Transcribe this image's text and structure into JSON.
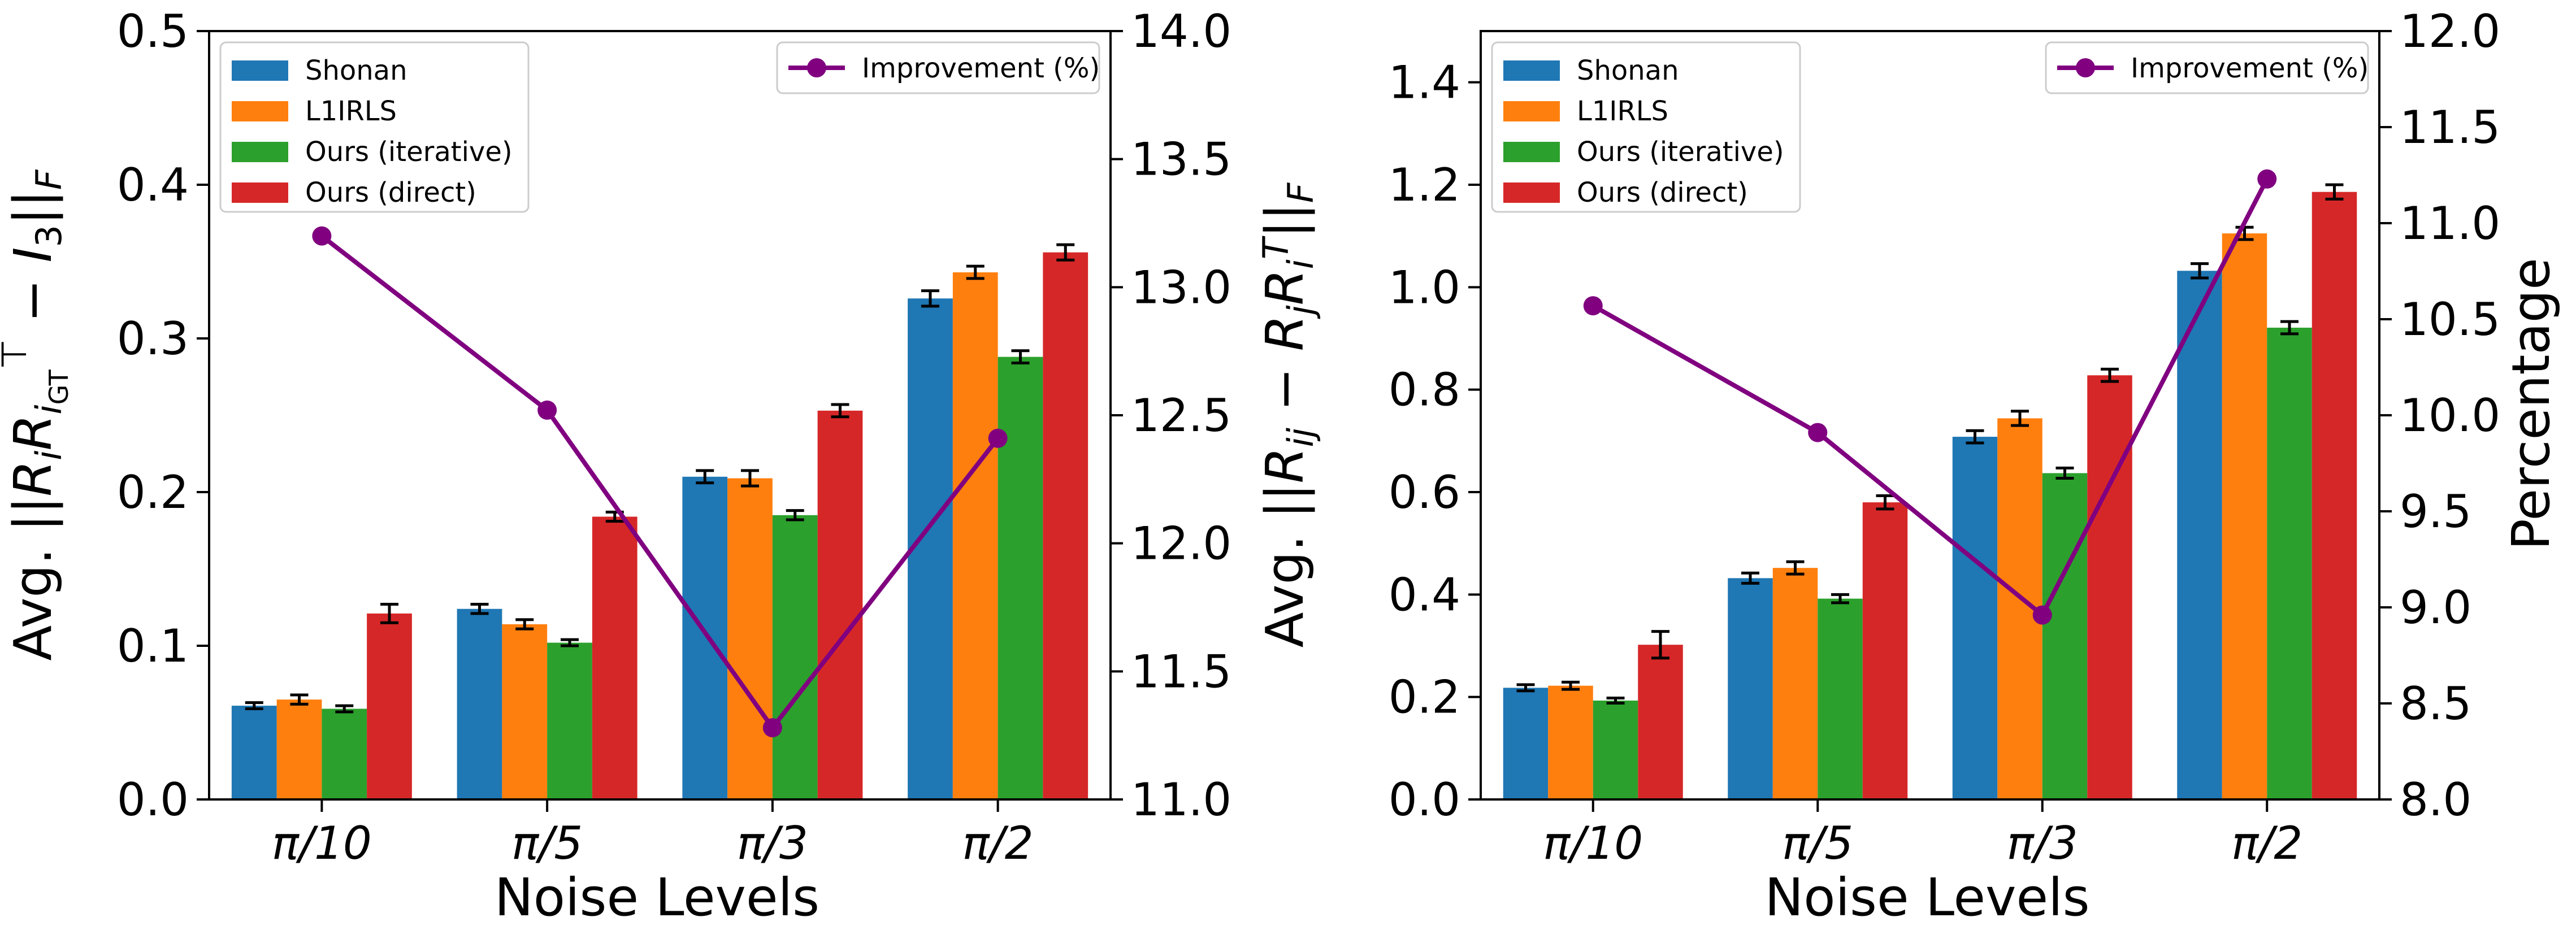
{
  "chart_data": [
    {
      "type": "bar",
      "title": "",
      "xlabel": "Noise Levels",
      "ylabel_prefix": "Avg. ",
      "ylabel_formula": "||R_i R_iGT^T − I_3||_F",
      "y2label": "",
      "categories": [
        "π/10",
        "π/5",
        "π/3",
        "π/2"
      ],
      "ylim": [
        0,
        0.5
      ],
      "yticks": [
        "0.0",
        "0.1",
        "0.2",
        "0.3",
        "0.4",
        "0.5"
      ],
      "y2lim": [
        11.0,
        14.0
      ],
      "y2ticks": [
        "11.0",
        "11.5",
        "12.0",
        "12.5",
        "13.0",
        "13.5",
        "14.0"
      ],
      "series": [
        {
          "name": "Shonan",
          "color": "#1f77b4",
          "values": [
            0.061,
            0.124,
            0.21,
            0.326
          ],
          "errors": [
            0.002,
            0.003,
            0.004,
            0.005
          ]
        },
        {
          "name": "L1IRLS",
          "color": "#ff7f0e",
          "values": [
            0.065,
            0.114,
            0.209,
            0.343
          ],
          "errors": [
            0.003,
            0.003,
            0.005,
            0.004
          ]
        },
        {
          "name": "Ours (iterative)",
          "color": "#2ca02c",
          "values": [
            0.059,
            0.102,
            0.185,
            0.288
          ],
          "errors": [
            0.002,
            0.002,
            0.003,
            0.004
          ]
        },
        {
          "name": "Ours (direct)",
          "color": "#d62728",
          "values": [
            0.121,
            0.184,
            0.253,
            0.356
          ],
          "errors": [
            0.006,
            0.003,
            0.004,
            0.005
          ]
        }
      ],
      "line": {
        "name": "Improvement (%)",
        "color": "#800080",
        "values": [
          13.2,
          12.52,
          11.28,
          12.41
        ]
      },
      "legend_position": "upper-left",
      "line_legend_position": "upper-right"
    },
    {
      "type": "bar",
      "title": "",
      "xlabel": "Noise Levels",
      "ylabel_prefix": "Avg. ",
      "ylabel_formula": "||R_ij − R_j R_i^T||_F",
      "y2label": "Percentage",
      "categories": [
        "π/10",
        "π/5",
        "π/3",
        "π/2"
      ],
      "ylim": [
        0,
        1.5
      ],
      "yticks": [
        "0.0",
        "0.2",
        "0.4",
        "0.6",
        "0.8",
        "1.0",
        "1.2",
        "1.4"
      ],
      "y2lim": [
        8.0,
        12.0
      ],
      "y2ticks": [
        "8.0",
        "8.5",
        "9.0",
        "9.5",
        "10.0",
        "10.5",
        "11.0",
        "11.5",
        "12.0"
      ],
      "series": [
        {
          "name": "Shonan",
          "color": "#1f77b4",
          "values": [
            0.218,
            0.432,
            0.708,
            1.032
          ],
          "errors": [
            0.006,
            0.01,
            0.012,
            0.014
          ]
        },
        {
          "name": "L1IRLS",
          "color": "#ff7f0e",
          "values": [
            0.222,
            0.452,
            0.744,
            1.105
          ],
          "errors": [
            0.007,
            0.012,
            0.014,
            0.012
          ]
        },
        {
          "name": "Ours (iterative)",
          "color": "#2ca02c",
          "values": [
            0.193,
            0.392,
            0.637,
            0.921
          ],
          "errors": [
            0.005,
            0.008,
            0.01,
            0.012
          ]
        },
        {
          "name": "Ours (direct)",
          "color": "#d62728",
          "values": [
            0.302,
            0.58,
            0.828,
            1.186
          ],
          "errors": [
            0.026,
            0.013,
            0.012,
            0.014
          ]
        }
      ],
      "line": {
        "name": "Improvement (%)",
        "color": "#800080",
        "values": [
          10.57,
          9.91,
          8.96,
          11.23
        ]
      },
      "legend_position": "upper-left",
      "line_legend_position": "upper-right"
    }
  ]
}
